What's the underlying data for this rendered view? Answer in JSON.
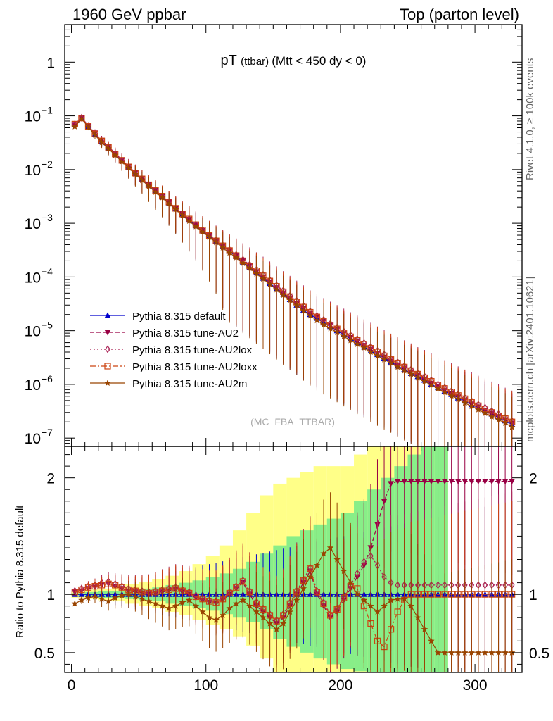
{
  "header": {
    "left": "1960 GeV ppbar",
    "right": "Top (parton level)"
  },
  "side_labels": {
    "top": "Rivet 4.1.0, ≥ 100k events",
    "bottom": "mcplots.cern.ch [arXiv:2401.10621]"
  },
  "chart_data": {
    "type": "line",
    "title": "pT",
    "title_small": "(ttbar)",
    "title_rest": "(Mtt < 450 dy < 0)",
    "watermark": "(MC_FBA_TTBAR)",
    "xlim": [
      -5,
      335
    ],
    "xticks": [
      0,
      100,
      200,
      300
    ],
    "xtick_labels": [
      "0",
      "100",
      "200",
      "300"
    ],
    "main": {
      "yscale": "log",
      "ylim": [
        7e-08,
        5
      ],
      "yticks": [
        1e-07,
        1e-06,
        1e-05,
        0.0001,
        0.001,
        0.01,
        0.1,
        1
      ],
      "ytick_labels": [
        {
          "base": "10",
          "exp": "−7"
        },
        {
          "base": "10",
          "exp": "−6"
        },
        {
          "base": "10",
          "exp": "−5"
        },
        {
          "base": "10",
          "exp": "−4"
        },
        {
          "base": "10",
          "exp": "−3"
        },
        {
          "base": "10",
          "exp": "−2"
        },
        {
          "base": "10",
          "exp": "−1"
        },
        {
          "base": "1",
          "exp": ""
        }
      ]
    },
    "ratio": {
      "ylabel": "Ratio to Pythia 8.315 default",
      "ylim": [
        0.33,
        2.27
      ],
      "yticks": [
        0.5,
        1,
        2
      ],
      "ytick_labels": [
        "0.5",
        "1",
        "2"
      ],
      "band_outer": {
        "x": [
          0,
          10,
          20,
          30,
          40,
          50,
          60,
          70,
          80,
          90,
          100,
          110,
          120,
          130,
          140,
          150,
          160,
          170,
          180,
          190,
          200,
          210,
          220,
          230,
          240,
          250,
          260,
          270
        ],
        "lo": [
          0.97,
          0.96,
          0.95,
          0.94,
          0.92,
          0.9,
          0.88,
          0.85,
          0.82,
          0.78,
          0.74,
          0.7,
          0.64,
          0.56,
          0.45,
          0.33,
          0.33,
          0.33,
          0.33,
          0.33,
          0.33,
          0.33,
          0.33,
          0.33,
          0.33,
          0.33,
          0.33,
          0.33
        ],
        "hi": [
          1.03,
          1.04,
          1.05,
          1.07,
          1.09,
          1.11,
          1.13,
          1.16,
          1.2,
          1.26,
          1.33,
          1.42,
          1.55,
          1.7,
          1.85,
          1.95,
          2.0,
          2.05,
          2.1,
          2.1,
          2.1,
          2.2,
          2.27,
          2.27,
          2.27,
          2.27,
          2.27,
          2.27
        ]
      },
      "band_inner": {
        "x": [
          0,
          10,
          20,
          30,
          40,
          50,
          60,
          70,
          80,
          90,
          100,
          110,
          120,
          130,
          140,
          150,
          160,
          170,
          180,
          190,
          200,
          210,
          220,
          230,
          240,
          250,
          260,
          270
        ],
        "lo": [
          0.99,
          0.98,
          0.97,
          0.97,
          0.96,
          0.95,
          0.94,
          0.92,
          0.9,
          0.88,
          0.86,
          0.83,
          0.8,
          0.76,
          0.7,
          0.62,
          0.55,
          0.5,
          0.45,
          0.4,
          0.36,
          0.34,
          0.33,
          0.33,
          0.33,
          0.33,
          0.33,
          0.33
        ],
        "hi": [
          1.01,
          1.02,
          1.03,
          1.03,
          1.04,
          1.05,
          1.06,
          1.08,
          1.1,
          1.12,
          1.15,
          1.18,
          1.22,
          1.28,
          1.35,
          1.42,
          1.5,
          1.55,
          1.6,
          1.65,
          1.7,
          1.8,
          1.9,
          2.0,
          2.1,
          2.2,
          2.27,
          2.27
        ]
      }
    },
    "x": [
      2.5,
      7.5,
      12.5,
      17.5,
      22.5,
      27.5,
      32.5,
      37.5,
      42.5,
      47.5,
      52.5,
      57.5,
      62.5,
      67.5,
      72.5,
      77.5,
      82.5,
      87.5,
      92.5,
      97.5,
      102.5,
      107.5,
      112.5,
      117.5,
      122.5,
      127.5,
      132.5,
      137.5,
      142.5,
      147.5,
      152.5,
      157.5,
      162.5,
      167.5,
      172.5,
      177.5,
      182.5,
      187.5,
      192.5,
      197.5,
      202.5,
      207.5,
      212.5,
      217.5,
      222.5,
      227.5,
      232.5,
      237.5,
      242.5,
      247.5,
      252.5,
      257.5,
      262.5,
      267.5,
      272.5,
      277.5,
      282.5,
      287.5,
      292.5,
      297.5,
      302.5,
      307.5,
      312.5,
      317.5,
      322.5,
      327.5
    ],
    "series": [
      {
        "name": "Pythia 8.315 default",
        "color": "#0000cc",
        "dash": "",
        "marker": "triangle-up",
        "values": [
          0.068,
          0.09,
          0.063,
          0.045,
          0.033,
          0.025,
          0.019,
          0.0145,
          0.011,
          0.0085,
          0.0066,
          0.0051,
          0.004,
          0.0031,
          0.0024,
          0.00185,
          0.00145,
          0.00115,
          0.0009,
          0.00072,
          0.00058,
          0.00046,
          0.00037,
          0.0003,
          0.00024,
          0.00019,
          0.00015,
          0.00012,
          9.5e-05,
          7.6e-05,
          6e-05,
          4.8e-05,
          3.8e-05,
          3e-05,
          2.4e-05,
          2e-05,
          1.7e-05,
          1.4e-05,
          1.2e-05,
          1e-05,
          8.4e-06,
          7e-06,
          6e-06,
          5e-06,
          4.2e-06,
          3.6e-06,
          3.1e-06,
          2.6e-06,
          2.2e-06,
          1.9e-06,
          1.6e-06,
          1.4e-06,
          1.2e-06,
          1e-06,
          8.7e-07,
          7.5e-07,
          6.5e-07,
          5.6e-07,
          4.9e-07,
          4.2e-07,
          3.7e-07,
          3.2e-07,
          2.8e-07,
          2.4e-07,
          2.1e-07,
          1.8e-07
        ],
        "ratio": [
          1.0,
          1.0,
          1.0,
          1.0,
          1.0,
          1.0,
          1.0,
          1.0,
          1.0,
          1.0,
          1.0,
          1.0,
          1.0,
          1.0,
          1.0,
          1.0,
          1.0,
          1.0,
          1.0,
          1.0,
          1.0,
          1.0,
          1.0,
          1.0,
          1.0,
          1.0,
          1.0,
          1.0,
          1.0,
          1.0,
          1.0,
          1.0,
          1.0,
          1.0,
          1.0,
          1.0,
          1.0,
          1.0,
          1.0,
          1.0,
          1.0,
          1.0,
          1.0,
          1.0,
          1.0,
          1.0,
          1.0,
          1.0,
          1.0,
          1.0,
          1.0,
          1.0,
          1.0,
          1.0,
          1.0,
          1.0,
          1.0,
          1.0,
          1.0,
          1.0,
          1.0,
          1.0,
          1.0,
          1.0,
          1.0,
          1.0
        ]
      },
      {
        "name": "Pythia 8.315 tune-AU2",
        "color": "#990044",
        "dash": "6,3",
        "marker": "triangle-down",
        "values": [
          0.069,
          0.093,
          0.066,
          0.048,
          0.035,
          0.027,
          0.02,
          0.0152,
          0.0115,
          0.0088,
          0.0068,
          0.0052,
          0.0041,
          0.0032,
          0.0025,
          0.0019,
          0.0015,
          0.00118,
          0.00092,
          0.00073,
          0.00059,
          0.00047,
          0.00038,
          0.00031,
          0.00025,
          0.0002,
          0.00016,
          0.000125,
          0.0001,
          8e-05,
          6.3e-05,
          5e-05,
          4e-05,
          3.2e-05,
          2.6e-05,
          2.1e-05,
          1.8e-05,
          1.5e-05,
          1.25e-05,
          1.05e-05,
          8.8e-06,
          7.4e-06,
          6.3e-06,
          5.3e-06,
          4.5e-06,
          3.8e-06,
          3.2e-06,
          2.7e-06,
          2.3e-06,
          2e-06,
          1.7e-06,
          1.45e-06,
          1.25e-06,
          1.05e-06,
          9e-07,
          7.8e-07,
          6.7e-07,
          5.8e-07,
          5e-07,
          4.3e-07,
          3.8e-07,
          3.3e-07,
          2.9e-07,
          2.5e-07,
          2.2e-07,
          1.9e-07
        ],
        "ratio": [
          1.02,
          1.03,
          1.05,
          1.06,
          1.08,
          1.09,
          1.07,
          1.05,
          1.03,
          1.02,
          1.01,
          1.0,
          1.01,
          1.02,
          1.03,
          1.04,
          1.02,
          1.0,
          0.97,
          0.95,
          0.93,
          0.92,
          0.95,
          1.0,
          1.05,
          1.1,
          1.0,
          0.9,
          0.85,
          0.8,
          0.75,
          0.8,
          0.9,
          1.0,
          1.1,
          1.2,
          1.0,
          0.9,
          0.8,
          0.85,
          0.95,
          1.05,
          1.15,
          1.25,
          1.4,
          1.6,
          1.8,
          1.95,
          1.97,
          1.97,
          1.97,
          1.97,
          1.97,
          1.97,
          1.97,
          1.97,
          1.97,
          1.97,
          1.97,
          1.97,
          1.97,
          1.97,
          1.97,
          1.97,
          1.97,
          1.97
        ]
      },
      {
        "name": "Pythia 8.315 tune-AU2lox",
        "color": "#aa2255",
        "dash": "2,3",
        "marker": "diamond",
        "values": [
          0.07,
          0.092,
          0.065,
          0.047,
          0.034,
          0.026,
          0.0195,
          0.0148,
          0.0112,
          0.0086,
          0.0067,
          0.0052,
          0.0041,
          0.0032,
          0.0025,
          0.0019,
          0.0015,
          0.0012,
          0.00095,
          0.00075,
          0.0006,
          0.00048,
          0.00039,
          0.00032,
          0.00026,
          0.00021,
          0.00017,
          0.000135,
          0.00011,
          8.8e-05,
          7e-05,
          5.6e-05,
          4.5e-05,
          3.6e-05,
          2.9e-05,
          2.3e-05,
          1.9e-05,
          1.6e-05,
          1.35e-05,
          1.15e-05,
          9.7e-06,
          8.2e-06,
          7e-06,
          5.9e-06,
          5e-06,
          4.2e-06,
          3.6e-06,
          3e-06,
          2.6e-06,
          2.2e-06,
          1.9e-06,
          1.6e-06,
          1.4e-06,
          1.2e-06,
          1e-06,
          8.7e-07,
          7.5e-07,
          6.5e-07,
          5.6e-07,
          4.9e-07,
          4.2e-07,
          3.7e-07,
          3.2e-07,
          2.8e-07,
          2.4e-07,
          2.1e-07
        ],
        "ratio": [
          1.03,
          1.05,
          1.07,
          1.08,
          1.1,
          1.11,
          1.09,
          1.07,
          1.05,
          1.04,
          1.03,
          1.02,
          1.03,
          1.04,
          1.05,
          1.06,
          1.04,
          1.02,
          0.99,
          0.97,
          0.95,
          0.94,
          0.97,
          1.02,
          1.07,
          1.12,
          1.03,
          0.93,
          0.88,
          0.83,
          0.78,
          0.83,
          0.93,
          1.03,
          1.13,
          1.23,
          1.03,
          0.93,
          0.83,
          0.88,
          0.98,
          1.08,
          1.18,
          1.28,
          1.33,
          1.25,
          1.15,
          1.1,
          1.08,
          1.08,
          1.08,
          1.08,
          1.08,
          1.08,
          1.08,
          1.08,
          1.08,
          1.08,
          1.08,
          1.08,
          1.08,
          1.08,
          1.08,
          1.08,
          1.08,
          1.08
        ]
      },
      {
        "name": "Pythia 8.315 tune-AU2loxx",
        "color": "#cc4411",
        "dash": "8,3,2,3",
        "marker": "square",
        "values": [
          0.07,
          0.091,
          0.064,
          0.046,
          0.034,
          0.026,
          0.0195,
          0.0148,
          0.0112,
          0.0086,
          0.0067,
          0.0052,
          0.0041,
          0.0032,
          0.0025,
          0.0019,
          0.0015,
          0.0012,
          0.00094,
          0.00074,
          0.00059,
          0.00047,
          0.00038,
          0.00031,
          0.00025,
          0.0002,
          0.00016,
          0.00013,
          0.000105,
          8.4e-05,
          6.7e-05,
          5.3e-05,
          4.3e-05,
          3.4e-05,
          2.75e-05,
          2.2e-05,
          1.8e-05,
          1.5e-05,
          1.27e-05,
          1.08e-05,
          9.1e-06,
          7.7e-06,
          6.6e-06,
          5.6e-06,
          4.7e-06,
          4e-06,
          3.4e-06,
          2.9e-06,
          2.5e-06,
          2.1e-06,
          1.8e-06,
          1.55e-06,
          1.33e-06,
          1.14e-06,
          9.8e-07,
          8.4e-07,
          7.2e-07,
          6.2e-07,
          5.4e-07,
          4.6e-07,
          4e-07,
          3.5e-07,
          3e-07,
          2.6e-07,
          2.3e-07,
          2e-07
        ],
        "ratio": [
          1.02,
          1.04,
          1.06,
          1.07,
          1.08,
          1.09,
          1.08,
          1.06,
          1.04,
          1.03,
          1.02,
          1.01,
          1.02,
          1.03,
          1.04,
          1.05,
          1.03,
          1.01,
          0.98,
          0.96,
          0.94,
          0.93,
          0.96,
          1.01,
          1.06,
          1.11,
          1.02,
          0.92,
          0.87,
          0.82,
          0.77,
          0.82,
          0.92,
          1.02,
          1.12,
          1.22,
          1.02,
          0.92,
          0.82,
          0.87,
          0.97,
          1.07,
          1.05,
          0.9,
          0.75,
          0.6,
          0.55,
          0.7,
          0.85,
          0.95,
          1.0,
          1.0,
          1.0,
          1.0,
          1.0,
          1.0,
          1.0,
          1.0,
          1.0,
          1.0,
          1.0,
          1.0,
          1.0,
          1.0,
          1.0,
          1.0
        ]
      },
      {
        "name": "Pythia 8.315 tune-AU2m",
        "color": "#994400",
        "dash": "",
        "marker": "star",
        "values": [
          0.063,
          0.088,
          0.062,
          0.044,
          0.032,
          0.0245,
          0.0185,
          0.014,
          0.0107,
          0.0082,
          0.0063,
          0.0049,
          0.0038,
          0.003,
          0.0023,
          0.0018,
          0.0014,
          0.0011,
          0.00087,
          0.00069,
          0.00055,
          0.00044,
          0.00035,
          0.00028,
          0.00023,
          0.00018,
          0.000145,
          0.000115,
          9.2e-05,
          7.3e-05,
          5.8e-05,
          4.6e-05,
          3.7e-05,
          2.95e-05,
          2.35e-05,
          1.9e-05,
          1.55e-05,
          1.3e-05,
          1.1e-05,
          9.3e-06,
          7.8e-06,
          6.6e-06,
          5.6e-06,
          4.8e-06,
          4e-06,
          3.4e-06,
          2.9e-06,
          2.5e-06,
          2.1e-06,
          1.8e-06,
          1.55e-06,
          1.33e-06,
          1.14e-06,
          9.7e-07,
          8.3e-07,
          7.1e-07,
          6.1e-07,
          5.3e-07,
          4.5e-07,
          3.9e-07,
          3.4e-07,
          2.9e-07,
          2.5e-07,
          2.2e-07,
          1.9e-07,
          1.6e-07
        ],
        "ratio": [
          0.92,
          0.95,
          0.97,
          0.98,
          0.96,
          0.94,
          0.97,
          0.99,
          1.0,
          0.98,
          0.96,
          0.94,
          0.92,
          0.9,
          0.88,
          0.9,
          0.93,
          0.95,
          0.9,
          0.85,
          0.8,
          0.78,
          0.82,
          0.88,
          0.92,
          0.95,
          0.9,
          0.85,
          0.8,
          0.75,
          0.7,
          0.75,
          0.85,
          0.95,
          1.05,
          1.15,
          1.25,
          1.35,
          1.4,
          1.3,
          1.2,
          1.1,
          1.0,
          0.95,
          0.9,
          0.85,
          0.9,
          0.95,
          0.96,
          0.96,
          0.9,
          0.8,
          0.7,
          0.6,
          0.5,
          0.5,
          0.5,
          0.5,
          0.5,
          0.5,
          0.5,
          0.5,
          0.5,
          0.5,
          0.5,
          0.5
        ]
      }
    ]
  }
}
